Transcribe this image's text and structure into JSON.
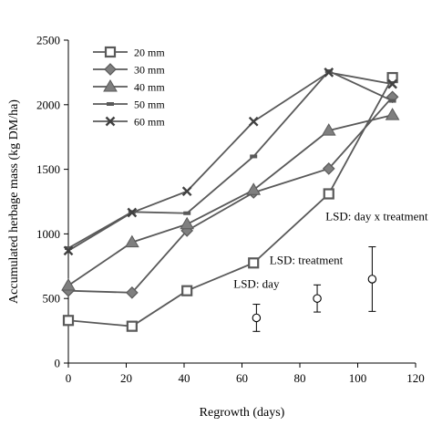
{
  "chart_data": {
    "type": "line",
    "xlabel": "Regrowth (days)",
    "ylabel": "Accumulated herbage mass (kg DM/ha)",
    "xlim": [
      0,
      120
    ],
    "ylim": [
      0,
      2500
    ],
    "xticks": [
      0,
      20,
      40,
      60,
      80,
      100,
      120
    ],
    "yticks": [
      0,
      500,
      1000,
      1500,
      2000,
      2500
    ],
    "grid": false,
    "legend_position": "top-left",
    "line_color": "#595959",
    "marker_fill": "#7f7f7f",
    "series": [
      {
        "name": "20 mm",
        "marker": "square",
        "x": [
          0,
          22,
          41,
          64,
          90,
          112
        ],
        "y": [
          330,
          285,
          560,
          775,
          1310,
          2210
        ]
      },
      {
        "name": "30 mm",
        "marker": "diamond",
        "x": [
          0,
          22,
          41,
          64,
          90,
          112
        ],
        "y": [
          560,
          545,
          1025,
          1320,
          1505,
          2060
        ]
      },
      {
        "name": "40 mm",
        "marker": "triangle",
        "x": [
          0,
          22,
          41,
          64,
          90,
          112
        ],
        "y": [
          600,
          935,
          1075,
          1340,
          1800,
          1920
        ]
      },
      {
        "name": "50 mm",
        "marker": "dash",
        "x": [
          0,
          22,
          41,
          64,
          90,
          112
        ],
        "y": [
          890,
          1170,
          1160,
          1600,
          2260,
          2030
        ]
      },
      {
        "name": "60 mm",
        "marker": "x",
        "x": [
          0,
          22,
          41,
          64,
          90,
          112
        ],
        "y": [
          870,
          1165,
          1330,
          1870,
          2250,
          2160
        ]
      }
    ],
    "lsd": [
      {
        "label": "LSD: day",
        "x": 65,
        "y": 350,
        "low": 245,
        "high": 455
      },
      {
        "label": "LSD: treatment",
        "x": 86,
        "y": 500,
        "low": 395,
        "high": 605
      },
      {
        "label": "LSD: day x treatment",
        "x": 105,
        "y": 650,
        "low": 400,
        "high": 900
      }
    ]
  }
}
